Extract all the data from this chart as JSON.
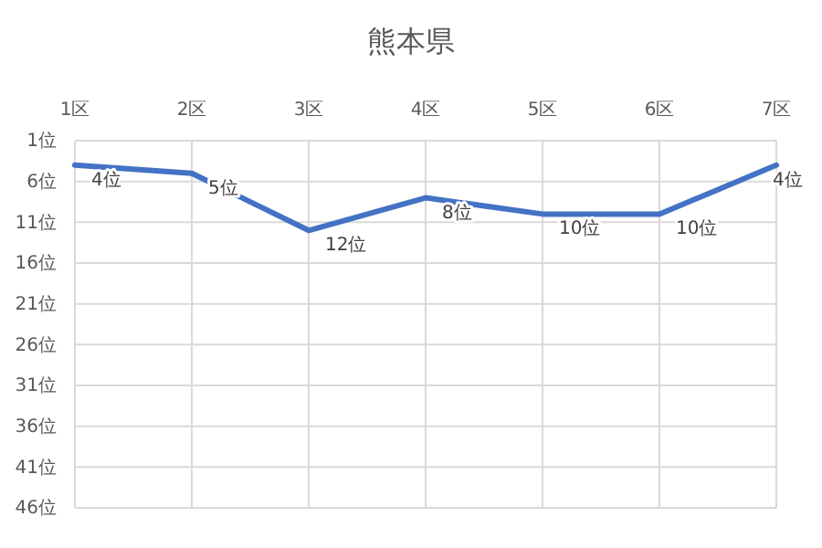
{
  "chart_data": {
    "type": "line",
    "title": "熊本県",
    "categories": [
      "1区",
      "2区",
      "3区",
      "4区",
      "5区",
      "6区",
      "7区"
    ],
    "series": [
      {
        "color": "#4472c4",
        "values": [
          4,
          5,
          12,
          8,
          10,
          10,
          4
        ],
        "value_labels": [
          "4位",
          "5位",
          "12位",
          "8位",
          "10位",
          "10位",
          "4位"
        ]
      }
    ],
    "ylim": [
      46,
      1
    ],
    "yticks": [
      {
        "value": 1,
        "label": "1位"
      },
      {
        "value": 6,
        "label": "6位"
      },
      {
        "value": 11,
        "label": "11位"
      },
      {
        "value": 16,
        "label": "16位"
      },
      {
        "value": 21,
        "label": "21位"
      },
      {
        "value": 26,
        "label": "26位"
      },
      {
        "value": 31,
        "label": "31位"
      },
      {
        "value": 36,
        "label": "36位"
      },
      {
        "value": 41,
        "label": "41位"
      },
      {
        "value": 46,
        "label": "46位"
      }
    ],
    "grid": true,
    "marker": "none",
    "line_style": "solid"
  }
}
